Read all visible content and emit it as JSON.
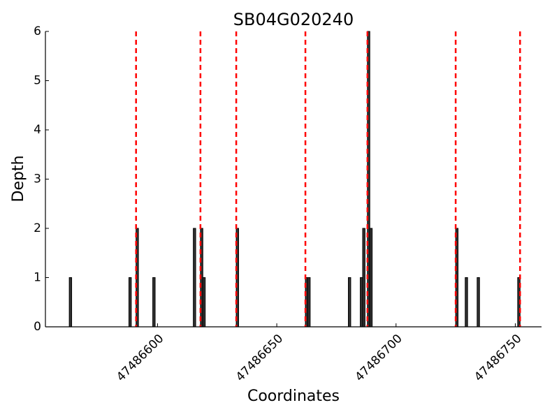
{
  "chart_data": {
    "type": "bar",
    "title": "SB04G020240",
    "x_label": "Coordinates",
    "y_label": "Depth",
    "x": [
      47486563,
      47486588,
      47486591,
      47486598,
      47486615,
      47486618,
      47486619,
      47486633,
      47486662,
      47486663,
      47486680,
      47486685,
      47486686,
      47486688,
      47486689,
      47486725,
      47486729,
      47486734,
      47486751
    ],
    "values": [
      1,
      1,
      2,
      1,
      2,
      2,
      1,
      2,
      1,
      1,
      1,
      1,
      2,
      6,
      2,
      2,
      1,
      1,
      1
    ],
    "color": "#333333",
    "vlines": [
      47486591,
      47486618,
      47486633,
      47486662,
      47486688,
      47486725,
      47486752
    ],
    "vline_color": "#ff0000",
    "xlim": [
      47486553,
      47486761
    ],
    "xticks": [
      47486600,
      47486650,
      47486700,
      47486750
    ],
    "ylim": [
      0,
      6
    ],
    "yticks": [
      0,
      1,
      2,
      3,
      4,
      5,
      6
    ]
  }
}
